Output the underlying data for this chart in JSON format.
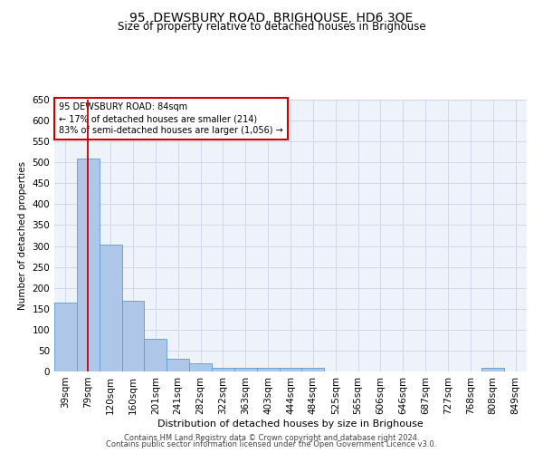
{
  "title": "95, DEWSBURY ROAD, BRIGHOUSE, HD6 3QE",
  "subtitle": "Size of property relative to detached houses in Brighouse",
  "xlabel": "Distribution of detached houses by size in Brighouse",
  "ylabel": "Number of detached properties",
  "categories": [
    "39sqm",
    "79sqm",
    "120sqm",
    "160sqm",
    "201sqm",
    "241sqm",
    "282sqm",
    "322sqm",
    "363sqm",
    "403sqm",
    "444sqm",
    "484sqm",
    "525sqm",
    "565sqm",
    "606sqm",
    "646sqm",
    "687sqm",
    "727sqm",
    "768sqm",
    "808sqm",
    "849sqm"
  ],
  "values": [
    165,
    510,
    303,
    168,
    78,
    30,
    20,
    8,
    8,
    8,
    8,
    8,
    0,
    0,
    0,
    0,
    0,
    0,
    0,
    8,
    0
  ],
  "bar_color": "#aec6e8",
  "bar_edge_color": "#5b9bd5",
  "grid_color": "#d0d8e8",
  "annotation_box_text": "95 DEWSBURY ROAD: 84sqm\n← 17% of detached houses are smaller (214)\n83% of semi-detached houses are larger (1,056) →",
  "annotation_box_color": "#cc0000",
  "ylim": [
    0,
    650
  ],
  "yticks": [
    0,
    50,
    100,
    150,
    200,
    250,
    300,
    350,
    400,
    450,
    500,
    550,
    600,
    650
  ],
  "footer_line1": "Contains HM Land Registry data © Crown copyright and database right 2024.",
  "footer_line2": "Contains public sector information licensed under the Open Government Licence v3.0.",
  "bg_color": "#eef2f9"
}
